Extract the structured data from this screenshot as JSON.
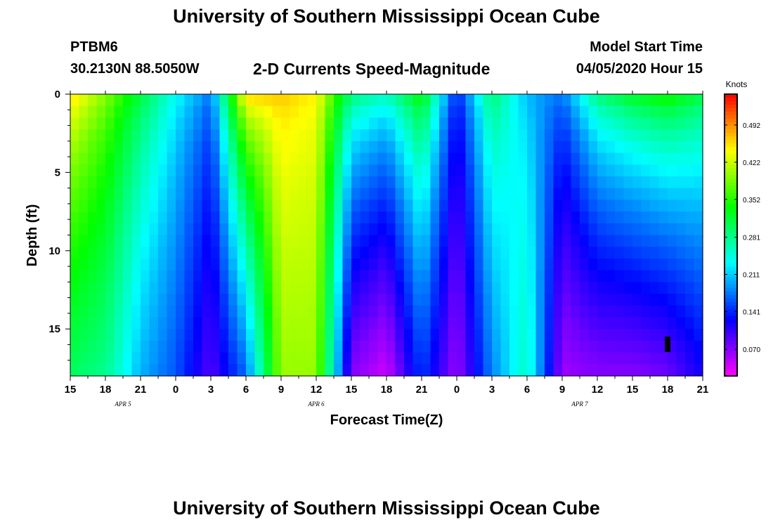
{
  "header": {
    "title": "University of Southern Mississippi Ocean Cube",
    "station_id": "PTBM6",
    "station_coords": "30.2130N 88.5050W",
    "subtitle": "2-D Currents Speed-Magnitude",
    "model_start_label": "Model Start Time",
    "model_start_value": "04/05/2020 Hour 15"
  },
  "footer": {
    "title": "University of Southern Mississippi Ocean Cube"
  },
  "chart_data": {
    "type": "heatmap",
    "title": "2-D Currents Speed-Magnitude",
    "xlabel": "Forecast Time(Z)",
    "ylabel": "Depth (ft)",
    "x_ticks": [
      "15",
      "18",
      "21",
      "0",
      "3",
      "6",
      "9",
      "12",
      "15",
      "18",
      "21",
      "0",
      "3",
      "6",
      "9",
      "12",
      "15",
      "18",
      "21"
    ],
    "x_range_hours": [
      0,
      54
    ],
    "date_labels": [
      {
        "label": "APR 5",
        "hour": 4.5
      },
      {
        "label": "APR 6",
        "hour": 21
      },
      {
        "label": "APR 7",
        "hour": 43.5
      }
    ],
    "y_ticks": [
      "0",
      "5",
      "10",
      "15"
    ],
    "ylim": [
      18,
      0
    ],
    "colorbar": {
      "label": "Knots",
      "ticks": [
        "0.492",
        "0.422",
        "0.352",
        "0.281",
        "0.211",
        "0.141",
        "0.070"
      ],
      "range": [
        0.02,
        0.55
      ]
    },
    "speed_profile_surface": [
      {
        "hour": 0,
        "surface": 0.47,
        "bottom": 0.3
      },
      {
        "hour": 3,
        "surface": 0.4,
        "bottom": 0.28
      },
      {
        "hour": 6,
        "surface": 0.32,
        "bottom": 0.2
      },
      {
        "hour": 9,
        "surface": 0.24,
        "bottom": 0.16
      },
      {
        "hour": 12,
        "surface": 0.18,
        "bottom": 0.09
      },
      {
        "hour": 15,
        "surface": 0.48,
        "bottom": 0.17
      },
      {
        "hour": 18,
        "surface": 0.47,
        "bottom": 0.4
      },
      {
        "hour": 21,
        "surface": 0.45,
        "bottom": 0.4
      },
      {
        "hour": 24,
        "surface": 0.3,
        "bottom": 0.07
      },
      {
        "hour": 27,
        "surface": 0.27,
        "bottom": 0.04
      },
      {
        "hour": 30,
        "surface": 0.35,
        "bottom": 0.15
      },
      {
        "hour": 33,
        "surface": 0.14,
        "bottom": 0.06
      },
      {
        "hour": 36,
        "surface": 0.3,
        "bottom": 0.18
      },
      {
        "hour": 39,
        "surface": 0.2,
        "bottom": 0.26
      },
      {
        "hour": 42,
        "surface": 0.18,
        "bottom": 0.06
      },
      {
        "hour": 45,
        "surface": 0.3,
        "bottom": 0.07
      },
      {
        "hour": 48,
        "surface": 0.34,
        "bottom": 0.07
      },
      {
        "hour": 51,
        "surface": 0.36,
        "bottom": 0.08
      },
      {
        "hour": 54,
        "surface": 0.32,
        "bottom": 0.12
      }
    ]
  }
}
